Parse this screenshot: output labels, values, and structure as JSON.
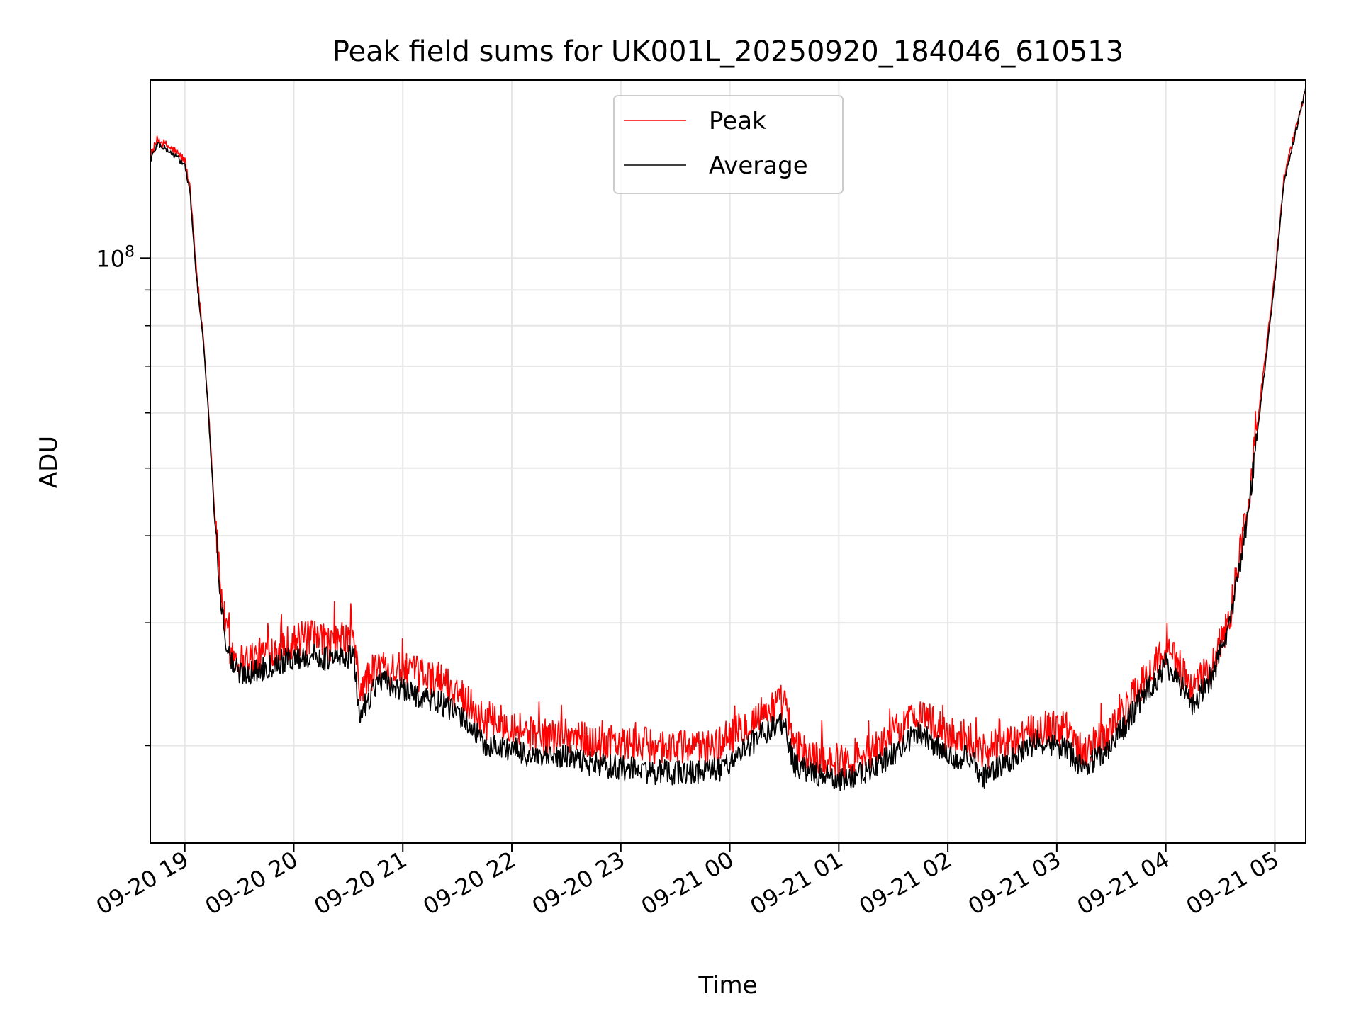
{
  "chart_data": {
    "type": "line",
    "title": "Peak field sums for UK001L_20250920_184046_610513",
    "xlabel": "Time",
    "ylabel": "ADU",
    "yscale": "log",
    "xlim": [
      "2025-09-20 18:41",
      "2025-09-21 05:17"
    ],
    "ylim": [
      14500000,
      180000000
    ],
    "x_ticks": [
      "09-20 19",
      "09-20 20",
      "09-20 21",
      "09-20 22",
      "09-20 23",
      "09-21 00",
      "09-21 01",
      "09-21 02",
      "09-21 03",
      "09-21 04",
      "09-21 05"
    ],
    "y_tick_major": {
      "base": "10",
      "exponent": "8"
    },
    "grid": true,
    "legend_position": "top-center",
    "colors": {
      "peak": "#ff0000",
      "average": "#000000"
    },
    "series": [
      {
        "name": "Peak",
        "x": [
          "2025-09-20 18:41",
          "2025-09-20 18:45",
          "2025-09-20 18:50",
          "2025-09-20 18:55",
          "2025-09-20 19:00",
          "2025-09-20 19:03",
          "2025-09-20 19:06",
          "2025-09-20 19:10",
          "2025-09-20 19:13",
          "2025-09-20 19:16",
          "2025-09-20 19:20",
          "2025-09-20 19:22",
          "2025-09-20 19:25",
          "2025-09-20 19:30",
          "2025-09-20 19:40",
          "2025-09-20 19:50",
          "2025-09-20 20:00",
          "2025-09-20 20:10",
          "2025-09-20 20:20",
          "2025-09-20 20:33",
          "2025-09-20 20:36",
          "2025-09-20 20:45",
          "2025-09-20 20:48",
          "2025-09-20 21:00",
          "2025-09-20 21:20",
          "2025-09-20 21:35",
          "2025-09-20 21:45",
          "2025-09-20 22:00",
          "2025-09-20 22:15",
          "2025-09-20 22:30",
          "2025-09-20 22:45",
          "2025-09-20 23:00",
          "2025-09-20 23:20",
          "2025-09-20 23:40",
          "2025-09-20 23:55",
          "2025-09-21 00:10",
          "2025-09-21 00:20",
          "2025-09-21 00:30",
          "2025-09-21 00:35",
          "2025-09-21 00:45",
          "2025-09-21 01:00",
          "2025-09-21 01:15",
          "2025-09-21 01:30",
          "2025-09-21 01:45",
          "2025-09-21 02:00",
          "2025-09-21 02:10",
          "2025-09-21 02:20",
          "2025-09-21 02:35",
          "2025-09-21 02:50",
          "2025-09-21 03:05",
          "2025-09-21 03:15",
          "2025-09-21 03:30",
          "2025-09-21 03:45",
          "2025-09-21 04:00",
          "2025-09-21 04:05",
          "2025-09-21 04:15",
          "2025-09-21 04:25",
          "2025-09-21 04:35",
          "2025-09-21 04:45",
          "2025-09-21 04:55",
          "2025-09-21 05:00",
          "2025-09-21 05:05",
          "2025-09-21 05:17"
        ],
        "values": [
          140000000,
          148000000,
          145000000,
          142000000,
          138000000,
          125000000,
          98000000,
          78000000,
          61000000,
          45000000,
          33000000,
          30000000,
          27500000,
          26500000,
          26800000,
          27600000,
          28300000,
          28500000,
          28000000,
          28700000,
          24000000,
          25800000,
          26000000,
          25600000,
          24900000,
          23400000,
          21600000,
          21500000,
          20500000,
          20800000,
          20200000,
          20100000,
          20000000,
          19800000,
          20100000,
          21500000,
          22500000,
          23200000,
          20000000,
          19300000,
          19000000,
          19300000,
          20800000,
          22400000,
          20600000,
          20700000,
          19600000,
          20100000,
          21300000,
          21100000,
          19700000,
          21100000,
          24100000,
          27500000,
          26500000,
          24100000,
          25800000,
          30500000,
          44000000,
          73000000,
          95000000,
          130000000,
          175000000
        ]
      },
      {
        "name": "Average",
        "x": [
          "2025-09-20 18:41",
          "2025-09-20 18:45",
          "2025-09-20 18:50",
          "2025-09-20 18:55",
          "2025-09-20 19:00",
          "2025-09-20 19:03",
          "2025-09-20 19:06",
          "2025-09-20 19:10",
          "2025-09-20 19:13",
          "2025-09-20 19:16",
          "2025-09-20 19:20",
          "2025-09-20 19:22",
          "2025-09-20 19:25",
          "2025-09-20 19:30",
          "2025-09-20 19:40",
          "2025-09-20 19:50",
          "2025-09-20 20:00",
          "2025-09-20 20:10",
          "2025-09-20 20:20",
          "2025-09-20 20:33",
          "2025-09-20 20:36",
          "2025-09-20 20:45",
          "2025-09-20 20:48",
          "2025-09-20 21:00",
          "2025-09-20 21:20",
          "2025-09-20 21:35",
          "2025-09-20 21:45",
          "2025-09-20 22:00",
          "2025-09-20 22:15",
          "2025-09-20 22:30",
          "2025-09-20 22:45",
          "2025-09-20 23:00",
          "2025-09-20 23:20",
          "2025-09-20 23:40",
          "2025-09-20 23:55",
          "2025-09-21 00:10",
          "2025-09-21 00:20",
          "2025-09-21 00:30",
          "2025-09-21 00:35",
          "2025-09-21 00:45",
          "2025-09-21 01:00",
          "2025-09-21 01:15",
          "2025-09-21 01:30",
          "2025-09-21 01:45",
          "2025-09-21 02:00",
          "2025-09-21 02:10",
          "2025-09-21 02:20",
          "2025-09-21 02:35",
          "2025-09-21 02:50",
          "2025-09-21 03:05",
          "2025-09-21 03:15",
          "2025-09-21 03:30",
          "2025-09-21 03:45",
          "2025-09-21 04:00",
          "2025-09-21 04:05",
          "2025-09-21 04:15",
          "2025-09-21 04:25",
          "2025-09-21 04:35",
          "2025-09-21 04:45",
          "2025-09-21 04:55",
          "2025-09-21 05:00",
          "2025-09-21 05:05",
          "2025-09-21 05:17"
        ],
        "values": [
          138000000,
          146000000,
          143000000,
          140000000,
          136000000,
          123000000,
          96000000,
          77000000,
          60000000,
          44000000,
          32000000,
          29000000,
          26500000,
          25400000,
          25600000,
          26300000,
          26700000,
          26900000,
          26600000,
          26900000,
          22000000,
          24500000,
          24800000,
          24000000,
          23100000,
          21700000,
          20000000,
          19800000,
          19100000,
          19300000,
          18800000,
          18600000,
          18300000,
          18300000,
          18500000,
          20000000,
          21000000,
          21700000,
          18800000,
          18300000,
          17800000,
          18300000,
          19500000,
          21000000,
          19300000,
          19300000,
          18100000,
          19000000,
          20300000,
          19800000,
          18600000,
          20000000,
          23000000,
          26100000,
          25200000,
          23000000,
          25000000,
          29500000,
          42500000,
          71000000,
          93000000,
          128000000,
          175000000
        ]
      }
    ]
  }
}
